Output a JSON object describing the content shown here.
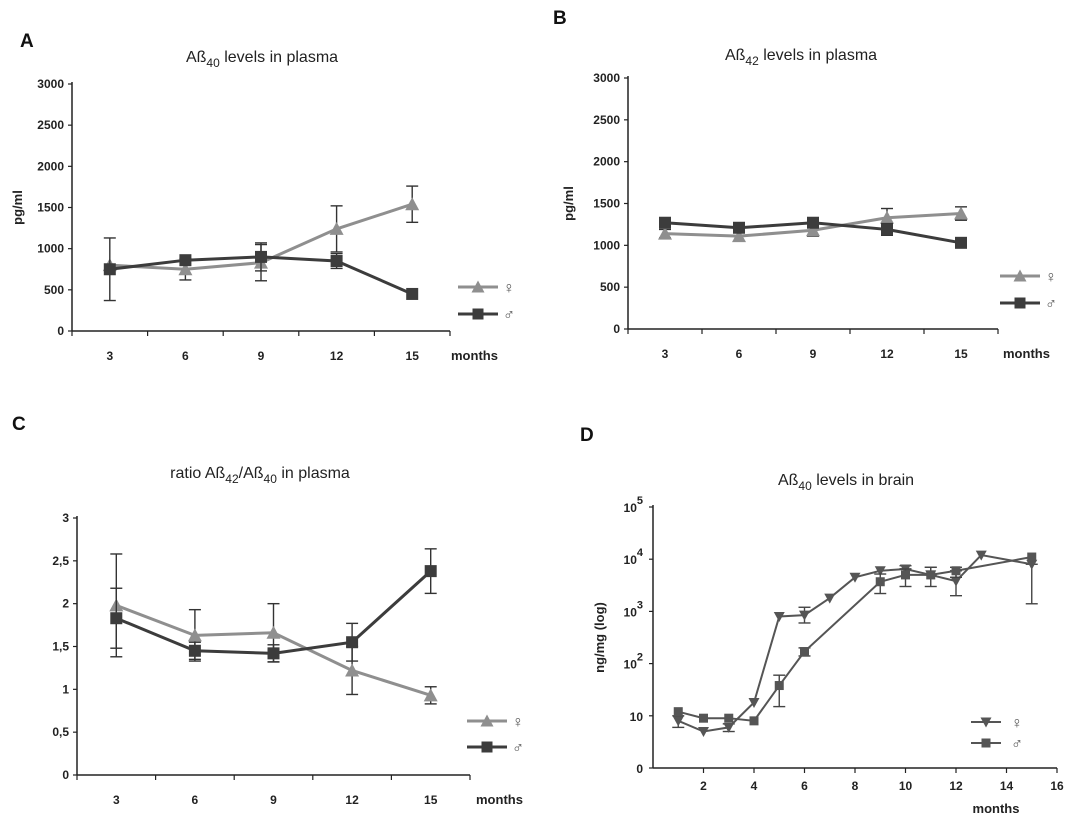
{
  "chart_data": [
    {
      "panel": "A",
      "type": "line",
      "title_main": "Aß",
      "title_sub": "40",
      "title_rest": " levels in plasma",
      "ylabel": "pg/ml",
      "xlabel": "months",
      "categories": [
        "3",
        "6",
        "9",
        "12",
        "15"
      ],
      "yticks": [
        "0",
        "500",
        "1000",
        "1500",
        "2000",
        "2500",
        "3000"
      ],
      "ylim": [
        0,
        3000
      ],
      "series": [
        {
          "name": "♀",
          "marker": "triangle",
          "color": "#8f8f8f",
          "values": [
            800,
            750,
            830,
            1240,
            1540
          ],
          "errors": [
            0,
            130,
            220,
            280,
            220
          ]
        },
        {
          "name": "♂",
          "marker": "square",
          "color": "#3c3c3c",
          "values": [
            750,
            860,
            900,
            850,
            450
          ],
          "errors": [
            380,
            0,
            170,
            90,
            0
          ]
        }
      ]
    },
    {
      "panel": "B",
      "type": "line",
      "title_main": "Aß",
      "title_sub": "42",
      "title_rest": " levels in plasma",
      "ylabel": "pg/ml",
      "xlabel": "months",
      "categories": [
        "3",
        "6",
        "9",
        "12",
        "15"
      ],
      "yticks": [
        "0",
        "500",
        "1000",
        "1500",
        "2000",
        "2500",
        "3000"
      ],
      "ylim": [
        0,
        3000
      ],
      "series": [
        {
          "name": "♀",
          "marker": "triangle",
          "color": "#8f8f8f",
          "values": [
            1140,
            1110,
            1180,
            1330,
            1380
          ],
          "errors": [
            50,
            0,
            70,
            110,
            80
          ]
        },
        {
          "name": "♂",
          "marker": "square",
          "color": "#3c3c3c",
          "values": [
            1270,
            1210,
            1270,
            1190,
            1030
          ],
          "errors": [
            0,
            0,
            0,
            70,
            0
          ]
        }
      ]
    },
    {
      "panel": "C",
      "type": "line",
      "title_main": "ratio Aß",
      "title_sub": "42",
      "title_mid": "/Aß",
      "title_sub2": "40",
      "title_rest": " in plasma",
      "ylabel": "",
      "xlabel": "months",
      "categories": [
        "3",
        "6",
        "9",
        "12",
        "15"
      ],
      "yticks": [
        "0",
        "0,5",
        "1",
        "1,5",
        "2",
        "2,5",
        "3"
      ],
      "ylim": [
        0,
        3
      ],
      "series": [
        {
          "name": "♀",
          "marker": "triangle",
          "color": "#8f8f8f",
          "values": [
            1.98,
            1.63,
            1.66,
            1.22,
            0.93
          ],
          "errors": [
            0.6,
            0.3,
            0.34,
            0.28,
            0.1
          ]
        },
        {
          "name": "♂",
          "marker": "square",
          "color": "#3c3c3c",
          "values": [
            1.83,
            1.45,
            1.42,
            1.55,
            2.38
          ],
          "errors": [
            0.35,
            0.1,
            0.1,
            0.22,
            0.26
          ]
        }
      ]
    },
    {
      "panel": "D",
      "type": "line",
      "scale": "log",
      "title_main": "Aß",
      "title_sub": "40",
      "title_rest": " levels in brain",
      "ylabel": "ng/mg (log)",
      "xlabel": "months",
      "xticks": [
        "2",
        "4",
        "6",
        "8",
        "10",
        "12",
        "14",
        "16"
      ],
      "xlim": [
        0,
        16
      ],
      "ylim": [
        1,
        100000
      ],
      "yticks": [
        {
          "value": 1,
          "label": "0"
        },
        {
          "value": 10,
          "label": "10"
        },
        {
          "value": 100,
          "label": "10",
          "exp": "2"
        },
        {
          "value": 1000,
          "label": "10",
          "exp": "3"
        },
        {
          "value": 10000,
          "label": "10",
          "exp": "4"
        },
        {
          "value": 100000,
          "label": "10",
          "exp": "5"
        }
      ],
      "series": [
        {
          "name": "♀",
          "marker": "triangle-down",
          "color": "#555555",
          "x": [
            1,
            2,
            3,
            4,
            5,
            6,
            7,
            8,
            9,
            10,
            11,
            12,
            13,
            15
          ],
          "values": [
            8,
            5,
            6,
            18,
            800,
            850,
            1800,
            4500,
            6000,
            6500,
            5000,
            3800,
            12000,
            8000
          ],
          "err_low": [
            6,
            5,
            5,
            18,
            800,
            600,
            1800,
            4500,
            6000,
            6500,
            5000,
            2000,
            12000,
            1400
          ],
          "err_high": [
            10,
            5,
            7,
            18,
            800,
            1200,
            1800,
            4500,
            6000,
            7500,
            7000,
            6000,
            12000,
            8000
          ]
        },
        {
          "name": "♂",
          "marker": "square",
          "color": "#555555",
          "x": [
            1,
            2,
            3,
            4,
            5,
            6,
            9,
            10,
            11,
            12,
            15
          ],
          "values": [
            12,
            9,
            9,
            8,
            38,
            170,
            3700,
            5000,
            5000,
            6000,
            11000
          ],
          "err_low": [
            12,
            9,
            9,
            8,
            15,
            140,
            2200,
            3000,
            3000,
            4500,
            11000
          ],
          "err_high": [
            12,
            9,
            9,
            8,
            60,
            200,
            5200,
            6500,
            7000,
            7000,
            11000
          ]
        }
      ]
    }
  ]
}
